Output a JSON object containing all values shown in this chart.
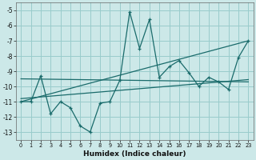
{
  "xlabel": "Humidex (Indice chaleur)",
  "bg_color": "#cce8e8",
  "grid_color": "#99cccc",
  "line_color": "#1a6b6b",
  "ylim": [
    -13.5,
    -4.5
  ],
  "xlim": [
    -0.5,
    23.5
  ],
  "yticks": [
    -13,
    -12,
    -11,
    -10,
    -9,
    -8,
    -7,
    -6,
    -5
  ],
  "xticks": [
    0,
    1,
    2,
    3,
    4,
    5,
    6,
    7,
    8,
    9,
    10,
    11,
    12,
    13,
    14,
    15,
    16,
    17,
    18,
    19,
    20,
    21,
    22,
    23
  ],
  "line1_x": [
    0,
    1,
    2,
    3,
    4,
    5,
    6,
    7,
    8,
    9,
    10,
    11,
    12,
    13,
    14,
    15,
    16,
    17,
    18,
    19,
    20,
    21,
    22,
    23
  ],
  "line1_y": [
    -11.0,
    -11.0,
    -9.3,
    -11.8,
    -11.0,
    -11.4,
    -12.6,
    -13.0,
    -11.1,
    -11.0,
    -9.6,
    -5.1,
    -7.5,
    -5.6,
    -9.4,
    -8.7,
    -8.3,
    -9.1,
    -10.0,
    -9.4,
    -9.7,
    -10.2,
    -8.1,
    -7.0
  ],
  "trend1_x": [
    0,
    23
  ],
  "trend1_y": [
    -11.0,
    -7.0
  ],
  "trend2_x": [
    0,
    23
  ],
  "trend2_y": [
    -9.5,
    -9.7
  ],
  "trend3_x": [
    0,
    23
  ],
  "trend3_y": [
    -10.8,
    -9.55
  ]
}
